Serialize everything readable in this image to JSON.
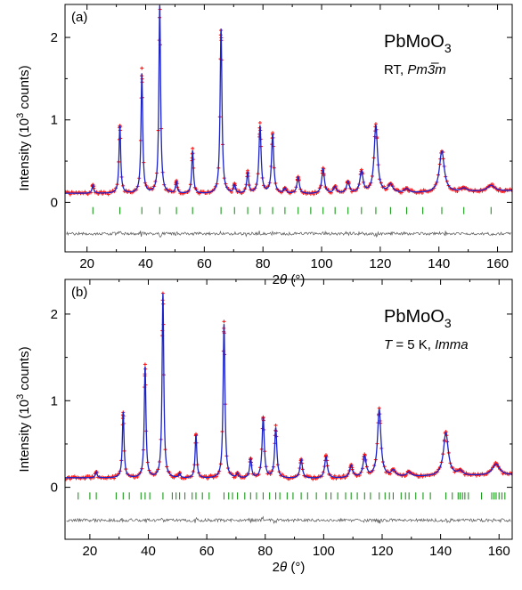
{
  "chart_data": [
    {
      "type": "line",
      "panel_label": "(a)",
      "compound": {
        "base": "PbMoO",
        "sub": "3"
      },
      "condition": {
        "prefix": "RT, ",
        "italic": "Pm3̅m",
        "suffix": ""
      },
      "xlabel": {
        "pre": "2",
        "italic": "θ",
        "post": " (°)"
      },
      "ylabel": {
        "pre": "Intensity (10",
        "sup": "3",
        "post": " counts)"
      },
      "xlim": [
        12.5,
        165
      ],
      "ylim": [
        -0.6,
        2.4
      ],
      "xticks": [
        "20",
        "40",
        "60",
        "80",
        "100",
        "120",
        "140",
        "160"
      ],
      "yticks": [
        "0",
        "1",
        "2"
      ],
      "background": [
        {
          "x": 12.5,
          "y": 0.11
        },
        {
          "x": 60,
          "y": 0.1
        },
        {
          "x": 100,
          "y": 0.1
        },
        {
          "x": 130,
          "y": 0.11
        },
        {
          "x": 165,
          "y": 0.14
        }
      ],
      "peaks": [
        {
          "x": 22.0,
          "h": 0.1,
          "w": 0.35
        },
        {
          "x": 31.2,
          "h": 0.82,
          "w": 0.35
        },
        {
          "x": 38.7,
          "h": 1.45,
          "w": 0.35
        },
        {
          "x": 44.8,
          "h": 2.28,
          "w": 0.35
        },
        {
          "x": 50.5,
          "h": 0.14,
          "w": 0.35
        },
        {
          "x": 56.0,
          "h": 0.52,
          "w": 0.35
        },
        {
          "x": 65.7,
          "h": 2.0,
          "w": 0.38
        },
        {
          "x": 70.3,
          "h": 0.1,
          "w": 0.4
        },
        {
          "x": 74.8,
          "h": 0.25,
          "w": 0.4
        },
        {
          "x": 79.0,
          "h": 0.82,
          "w": 0.45
        },
        {
          "x": 83.3,
          "h": 0.72,
          "w": 0.45
        },
        {
          "x": 87.5,
          "h": 0.06,
          "w": 0.5
        },
        {
          "x": 92.0,
          "h": 0.2,
          "w": 0.5
        },
        {
          "x": 100.5,
          "h": 0.3,
          "w": 0.55
        },
        {
          "x": 104.6,
          "h": 0.08,
          "w": 0.6
        },
        {
          "x": 109.0,
          "h": 0.14,
          "w": 0.6
        },
        {
          "x": 113.6,
          "h": 0.26,
          "w": 0.65
        },
        {
          "x": 118.5,
          "h": 0.82,
          "w": 0.7
        },
        {
          "x": 123.5,
          "h": 0.1,
          "w": 0.9
        },
        {
          "x": 129.0,
          "h": 0.05,
          "w": 0.9
        },
        {
          "x": 141.0,
          "h": 0.5,
          "w": 1.0
        },
        {
          "x": 148.5,
          "h": 0.04,
          "w": 1.2
        },
        {
          "x": 157.8,
          "h": 0.07,
          "w": 1.5
        }
      ],
      "bragg_y": -0.1,
      "bragg_positions": [
        22.0,
        31.2,
        38.7,
        44.8,
        50.5,
        56.0,
        65.7,
        70.3,
        74.8,
        79.0,
        83.3,
        87.5,
        92.0,
        96.3,
        100.5,
        104.6,
        109.0,
        113.6,
        118.5,
        123.5,
        129.0,
        134.5,
        141.0,
        148.5,
        157.8
      ],
      "difference_y": -0.38
    },
    {
      "type": "line",
      "panel_label": "(b)",
      "compound": {
        "base": "PbMoO",
        "sub": "3"
      },
      "condition": {
        "prefix": "",
        "italic": "T",
        "suffix": " = 5 K, ",
        "italic2": "Imma"
      },
      "xlabel": {
        "pre": "2",
        "italic": "θ",
        "post": " (°)"
      },
      "ylabel": {
        "pre": "Intensity (10",
        "sup": "3",
        "post": " counts)"
      },
      "xlim": [
        11.5,
        164.5
      ],
      "ylim": [
        -0.6,
        2.4
      ],
      "xticks": [
        "20",
        "40",
        "60",
        "80",
        "100",
        "120",
        "140",
        "160"
      ],
      "yticks": [
        "0",
        "1",
        "2"
      ],
      "background": [
        {
          "x": 11.5,
          "y": 0.11
        },
        {
          "x": 60,
          "y": 0.1
        },
        {
          "x": 100,
          "y": 0.1
        },
        {
          "x": 130,
          "y": 0.12
        },
        {
          "x": 164.5,
          "y": 0.14
        }
      ],
      "peaks": [
        {
          "x": 22.2,
          "h": 0.07,
          "w": 0.35
        },
        {
          "x": 31.4,
          "h": 0.76,
          "w": 0.35
        },
        {
          "x": 38.9,
          "h": 1.28,
          "w": 0.35
        },
        {
          "x": 45.0,
          "h": 2.13,
          "w": 0.35
        },
        {
          "x": 50.7,
          "h": 0.05,
          "w": 0.35
        },
        {
          "x": 56.3,
          "h": 0.5,
          "w": 0.35
        },
        {
          "x": 65.9,
          "h": 1.78,
          "w": 0.38
        },
        {
          "x": 70.5,
          "h": 0.05,
          "w": 0.4
        },
        {
          "x": 75.0,
          "h": 0.22,
          "w": 0.4
        },
        {
          "x": 79.3,
          "h": 0.7,
          "w": 0.45
        },
        {
          "x": 83.6,
          "h": 0.58,
          "w": 0.45
        },
        {
          "x": 92.3,
          "h": 0.22,
          "w": 0.5
        },
        {
          "x": 100.8,
          "h": 0.25,
          "w": 0.55
        },
        {
          "x": 109.4,
          "h": 0.14,
          "w": 0.6
        },
        {
          "x": 114.0,
          "h": 0.24,
          "w": 0.65
        },
        {
          "x": 119.0,
          "h": 0.78,
          "w": 0.7
        },
        {
          "x": 123.8,
          "h": 0.07,
          "w": 0.9
        },
        {
          "x": 129.2,
          "h": 0.05,
          "w": 0.9
        },
        {
          "x": 141.8,
          "h": 0.5,
          "w": 1.0
        },
        {
          "x": 146.7,
          "h": 0.05,
          "w": 1.0
        },
        {
          "x": 159.0,
          "h": 0.13,
          "w": 1.5
        }
      ],
      "bragg_y": -0.1,
      "bragg_positions": [
        16.0,
        20.0,
        22.2,
        29.0,
        31.4,
        33.5,
        37.5,
        38.9,
        40.5,
        45.0,
        48.2,
        49.5,
        50.7,
        52.5,
        55.0,
        56.3,
        58.5,
        60.8,
        65.9,
        67.5,
        68.8,
        70.5,
        73.0,
        75.0,
        77.0,
        79.3,
        81.5,
        83.6,
        85.0,
        87.5,
        89.5,
        92.3,
        94.5,
        97.5,
        100.8,
        102.5,
        104.8,
        107.5,
        109.4,
        111.5,
        114.0,
        116.0,
        119.0,
        121.0,
        122.5,
        123.8,
        126.5,
        128.0,
        129.2,
        131.5,
        134.0,
        136.5,
        141.8,
        144.0,
        146.0,
        146.7,
        147.5,
        148.3,
        149.5,
        154.0,
        157.5,
        158.3,
        159.0,
        160.0,
        161.0,
        162.0
      ],
      "difference_y": -0.38
    }
  ]
}
